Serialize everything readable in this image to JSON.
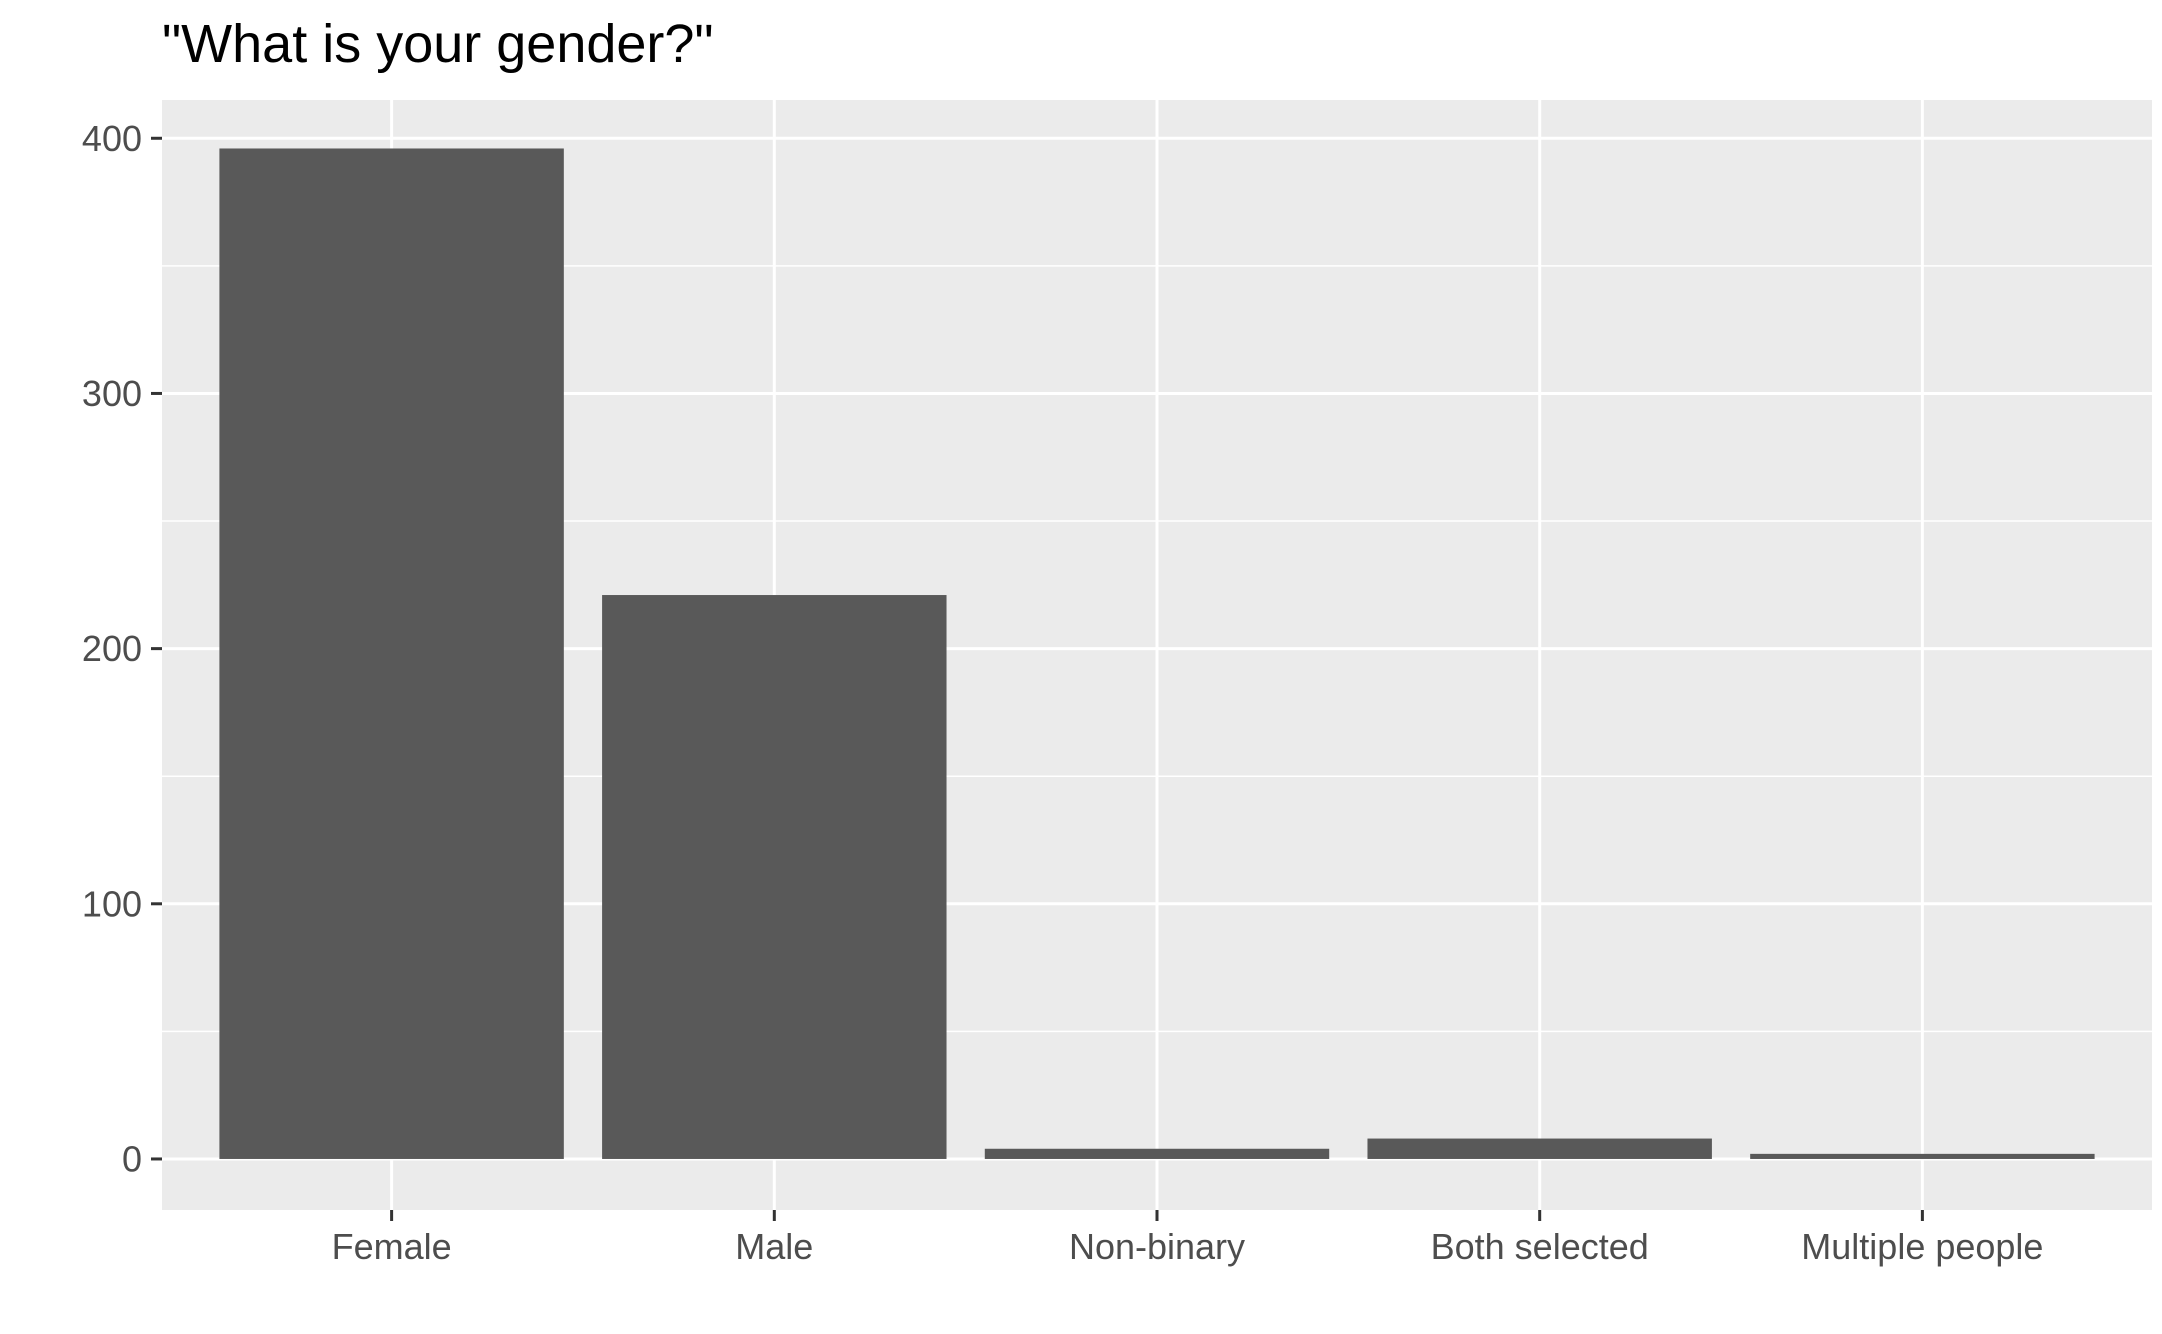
{
  "chart_data": {
    "type": "bar",
    "title": "\"What is your gender?\"",
    "xlabel": "",
    "ylabel": "",
    "categories": [
      "Female",
      "Male",
      "Non-binary",
      "Both selected",
      "Multiple people"
    ],
    "values": [
      396,
      221,
      4,
      8,
      2
    ],
    "ylim": [
      -20,
      415
    ],
    "yticks": [
      0,
      100,
      200,
      300,
      400
    ],
    "ytick_labels": [
      "0",
      "100",
      "200",
      "300",
      "400"
    ],
    "grid": true,
    "legend": "none",
    "colors": {
      "panel_background": "#ebebeb",
      "grid": "#ffffff",
      "bar": "#595959",
      "tick_text": "#4d4d4d",
      "tick_mark": "#333333",
      "title_text": "#000000"
    }
  }
}
